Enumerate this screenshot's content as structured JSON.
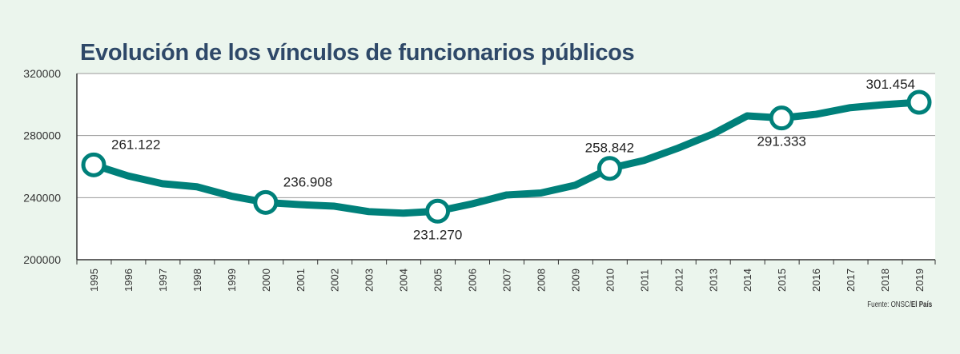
{
  "chart_data": {
    "type": "line",
    "title": "Evolución de los vínculos de funcionarios públicos",
    "xlabel": "",
    "ylabel": "",
    "ylim": [
      200000,
      320000
    ],
    "yticks": [
      "200000",
      "240000",
      "280000",
      "320000"
    ],
    "grid": true,
    "categories": [
      "1995",
      "1996",
      "1997",
      "1998",
      "1999",
      "2000",
      "2001",
      "2002",
      "2003",
      "2004",
      "2005",
      "2006",
      "2007",
      "2008",
      "2009",
      "2010",
      "2011",
      "2012",
      "2013",
      "2014",
      "2015",
      "2016",
      "2017",
      "2018",
      "2019"
    ],
    "values": [
      261122,
      254000,
      249000,
      247000,
      241000,
      236908,
      235500,
      234500,
      231000,
      230000,
      231270,
      236000,
      241700,
      243000,
      248000,
      258842,
      264000,
      272000,
      281000,
      292700,
      291333,
      293700,
      298000,
      300000,
      301454
    ],
    "annotations": [
      {
        "year": "1995",
        "label": "261.122",
        "pos": "above-right"
      },
      {
        "year": "2000",
        "label": "236.908",
        "pos": "above-right"
      },
      {
        "year": "2005",
        "label": "231.270",
        "pos": "below"
      },
      {
        "year": "2010",
        "label": "258.842",
        "pos": "above"
      },
      {
        "year": "2015",
        "label": "291.333",
        "pos": "below"
      },
      {
        "year": "2019",
        "label": "301.454",
        "pos": "above-left"
      }
    ],
    "line_color": "#00807a",
    "source": {
      "prefix": "Fuente: ONSC/",
      "bold": "El País"
    }
  }
}
